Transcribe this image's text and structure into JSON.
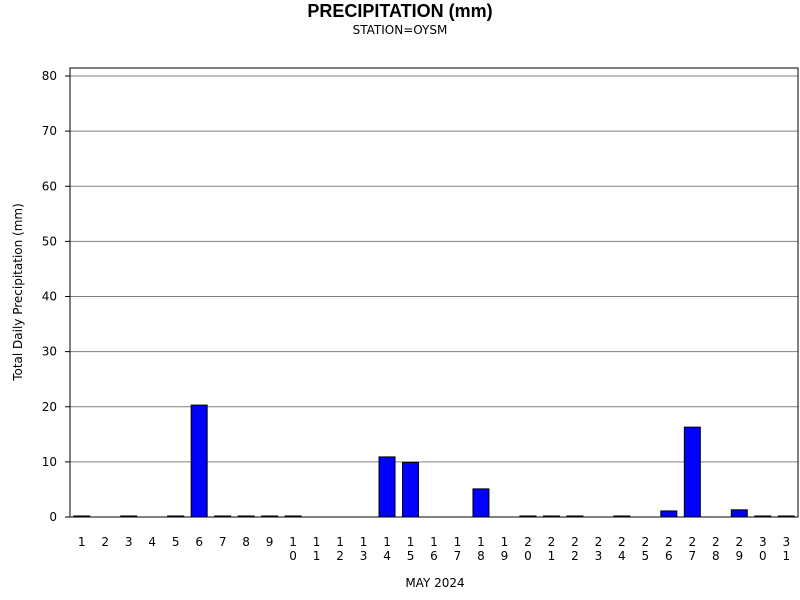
{
  "chart_data": {
    "type": "bar",
    "title": "PRECIPITATION (mm)",
    "subtitle": "STATION=OYSM",
    "xlabel": "MAY 2024",
    "ylabel": "Total Daily Precipitation (mm)",
    "ylim": [
      0,
      80
    ],
    "yticks": [
      0,
      10,
      20,
      30,
      40,
      50,
      60,
      70,
      80
    ],
    "grid": true,
    "categories": [
      "1",
      "2",
      "3",
      "4",
      "5",
      "6",
      "7",
      "8",
      "9",
      "10",
      "11",
      "12",
      "13",
      "14",
      "15",
      "16",
      "17",
      "18",
      "19",
      "20",
      "21",
      "22",
      "23",
      "24",
      "25",
      "26",
      "27",
      "28",
      "29",
      "30",
      "31"
    ],
    "values": [
      0.1,
      null,
      0.1,
      null,
      0.1,
      20.3,
      0.1,
      0.1,
      0.1,
      0.1,
      null,
      null,
      null,
      10.9,
      9.9,
      null,
      null,
      5.1,
      null,
      0.1,
      0.1,
      0.1,
      null,
      0.1,
      null,
      1.1,
      16.3,
      null,
      1.3,
      0.1,
      0.1
    ],
    "bar_color": "#0000ff"
  }
}
